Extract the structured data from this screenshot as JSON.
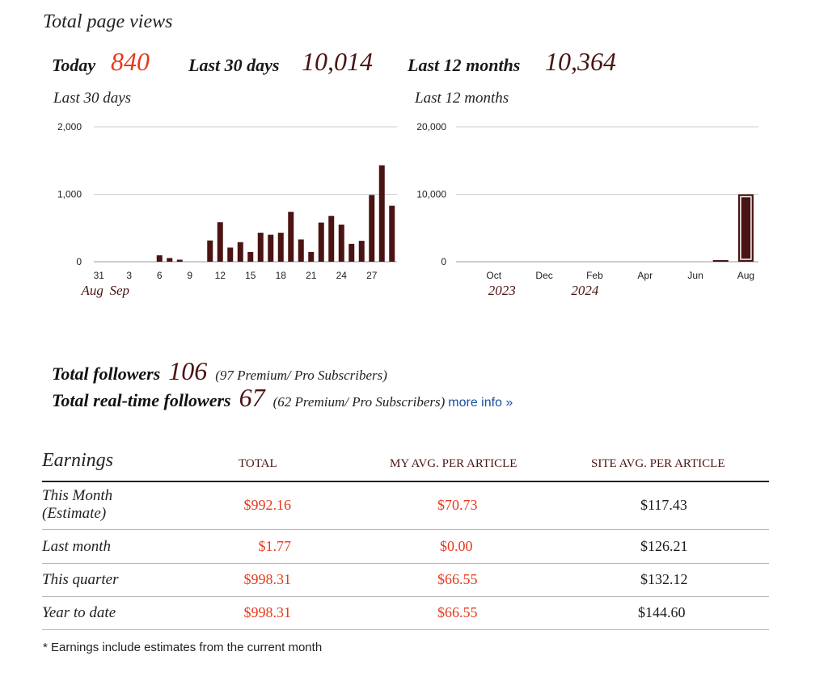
{
  "page_title": "Total page views",
  "stats": {
    "today_label": "Today",
    "today_value": "840",
    "last30_label": "Last 30 days",
    "last30_value": "10,014",
    "last12_label": "Last 12 months",
    "last12_value": "10,364"
  },
  "colors": {
    "accent_red": "#e8391c",
    "maroon": "#4a1412",
    "link_blue": "#1a4fa0"
  },
  "chart_data": [
    {
      "type": "bar",
      "title": "Last 30 days",
      "x_tick_labels": [
        "31",
        "3",
        "6",
        "9",
        "12",
        "15",
        "18",
        "21",
        "24",
        "27"
      ],
      "x_group_labels": [
        "Aug",
        "Sep"
      ],
      "y_ticks": [
        "0",
        "1,000",
        "2,000"
      ],
      "ylim": [
        0,
        2000
      ],
      "grid": true,
      "days": [
        31,
        1,
        2,
        3,
        4,
        5,
        6,
        7,
        8,
        9,
        10,
        11,
        12,
        13,
        14,
        15,
        16,
        17,
        18,
        19,
        20,
        21,
        22,
        23,
        24,
        25,
        26,
        27,
        28,
        29
      ],
      "values": [
        0,
        0,
        0,
        0,
        0,
        0,
        95,
        55,
        30,
        0,
        0,
        315,
        585,
        210,
        290,
        145,
        430,
        400,
        430,
        740,
        330,
        145,
        580,
        680,
        550,
        265,
        310,
        990,
        1430,
        830
      ]
    },
    {
      "type": "bar",
      "title": "Last 12 months",
      "x_tick_labels": [
        "Oct",
        "Dec",
        "Feb",
        "Apr",
        "Jun",
        "Aug"
      ],
      "x_group_labels": [
        "2023",
        "2024"
      ],
      "y_ticks": [
        "0",
        "10,000",
        "20,000"
      ],
      "ylim": [
        0,
        20000
      ],
      "grid": true,
      "months": [
        "Sep",
        "Oct",
        "Nov",
        "Dec",
        "Jan",
        "Feb",
        "Mar",
        "Apr",
        "May",
        "Jun",
        "Jul",
        "Aug"
      ],
      "values": [
        0,
        0,
        0,
        0,
        0,
        0,
        0,
        0,
        0,
        0,
        200,
        10000
      ],
      "highlighted_month": "Aug"
    }
  ],
  "followers": {
    "total_label": "Total followers",
    "total_value": "106",
    "total_note": "(97 Premium/ Pro Subscribers)",
    "realtime_label": "Total real-time followers",
    "realtime_value": "67",
    "realtime_note": "(62 Premium/ Pro Subscribers)",
    "more_info": "more info »"
  },
  "earnings": {
    "title": "Earnings",
    "headers": [
      "TOTAL",
      "MY AVG. PER ARTICLE",
      "SITE AVG. PER ARTICLE"
    ],
    "rows": [
      {
        "label": "This Month (Estimate)",
        "label_line1": "This Month",
        "label_line2": "(Estimate)",
        "total": "$992.16",
        "my_avg": "$70.73",
        "site_avg": "$117.43"
      },
      {
        "label": "Last month",
        "total": "$1.77",
        "my_avg": "$0.00",
        "site_avg": "$126.21"
      },
      {
        "label": "This quarter",
        "total": "$998.31",
        "my_avg": "$66.55",
        "site_avg": "$132.12"
      },
      {
        "label": "Year to date",
        "total": "$998.31",
        "my_avg": "$66.55",
        "site_avg": "$144.60"
      }
    ]
  },
  "footnote": "* Earnings include estimates from the current month"
}
